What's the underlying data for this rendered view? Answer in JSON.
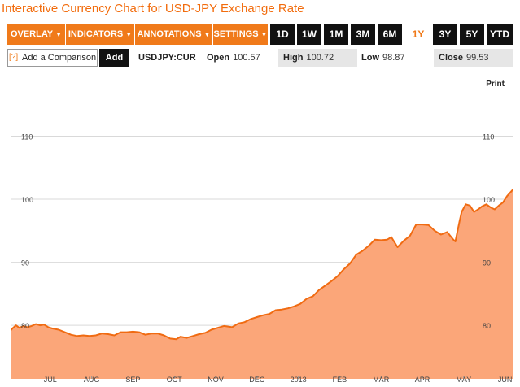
{
  "title": "Interactive Currency Chart for USD-JPY Exchange Rate",
  "toolbar": {
    "menus": [
      {
        "label": "OVERLAY"
      },
      {
        "label": "INDICATORS"
      },
      {
        "label": "ANNOTATIONS"
      },
      {
        "label": "SETTINGS"
      }
    ],
    "caret": "▼",
    "ranges": [
      "1D",
      "1W",
      "1M",
      "3M",
      "6M",
      "1Y",
      "3Y",
      "5Y",
      "YTD"
    ],
    "active_range": "1Y"
  },
  "comparison": {
    "help": "[?]",
    "placeholder": "Add a Comparison",
    "add_label": "Add"
  },
  "quote": {
    "symbol": "USDJPY:CUR",
    "open_label": "Open",
    "open": "100.57",
    "high_label": "High",
    "high": "100.72",
    "low_label": "Low",
    "low": "98.87",
    "close_label": "Close",
    "close": "99.53"
  },
  "print_label": "Print",
  "colors": {
    "accent": "#f07a1a",
    "title": "#f26c0d",
    "line": "#f06b12",
    "fill": "#fba679",
    "active_range_text": "#f07a1a"
  },
  "chart_data": {
    "type": "area",
    "title": "",
    "xlabel": "",
    "ylabel": "",
    "ylim": [
      71.5,
      120
    ],
    "y_ticks": [
      80,
      90,
      100,
      110
    ],
    "x_ticks": [
      "JUL",
      "AUG",
      "SEP",
      "OCT",
      "NOV",
      "DEC",
      "2013",
      "FEB",
      "MAR",
      "APR",
      "MAY",
      "JUN"
    ],
    "grid": true,
    "x_unit": "month index (0 = JUN 2012 start, 1 = JUL ...)",
    "points": [
      [
        0.0,
        78.9
      ],
      [
        0.1,
        79.6
      ],
      [
        0.17,
        80.0
      ],
      [
        0.25,
        79.6
      ],
      [
        0.35,
        79.9
      ],
      [
        0.45,
        79.7
      ],
      [
        0.55,
        79.9
      ],
      [
        0.65,
        80.2
      ],
      [
        0.75,
        80.0
      ],
      [
        0.85,
        80.1
      ],
      [
        0.95,
        79.7
      ],
      [
        1.05,
        79.5
      ],
      [
        1.2,
        79.3
      ],
      [
        1.35,
        78.9
      ],
      [
        1.5,
        78.5
      ],
      [
        1.65,
        78.3
      ],
      [
        1.8,
        78.4
      ],
      [
        1.95,
        78.3
      ],
      [
        2.1,
        78.4
      ],
      [
        2.25,
        78.7
      ],
      [
        2.4,
        78.6
      ],
      [
        2.55,
        78.4
      ],
      [
        2.7,
        78.9
      ],
      [
        2.85,
        78.9
      ],
      [
        3.0,
        79.0
      ],
      [
        3.15,
        78.9
      ],
      [
        3.3,
        78.5
      ],
      [
        3.45,
        78.7
      ],
      [
        3.6,
        78.7
      ],
      [
        3.75,
        78.4
      ],
      [
        3.9,
        77.9
      ],
      [
        4.05,
        77.8
      ],
      [
        4.15,
        78.2
      ],
      [
        4.3,
        78.0
      ],
      [
        4.45,
        78.3
      ],
      [
        4.6,
        78.6
      ],
      [
        4.75,
        78.8
      ],
      [
        4.9,
        79.3
      ],
      [
        5.05,
        79.6
      ],
      [
        5.2,
        79.9
      ],
      [
        5.4,
        79.7
      ],
      [
        5.55,
        80.3
      ],
      [
        5.7,
        80.5
      ],
      [
        5.85,
        81.0
      ],
      [
        6.0,
        81.3
      ],
      [
        6.15,
        81.6
      ],
      [
        6.3,
        81.8
      ],
      [
        6.45,
        82.4
      ],
      [
        6.6,
        82.5
      ],
      [
        6.75,
        82.7
      ],
      [
        6.9,
        83.0
      ],
      [
        7.05,
        83.4
      ],
      [
        7.2,
        84.2
      ],
      [
        7.35,
        84.6
      ],
      [
        7.5,
        85.6
      ],
      [
        7.65,
        86.3
      ],
      [
        7.8,
        87.0
      ],
      [
        7.95,
        87.8
      ],
      [
        8.1,
        88.9
      ],
      [
        8.25,
        89.8
      ],
      [
        8.4,
        91.2
      ],
      [
        8.55,
        91.8
      ],
      [
        8.7,
        92.6
      ],
      [
        8.85,
        93.6
      ],
      [
        9.0,
        93.5
      ],
      [
        9.15,
        93.6
      ],
      [
        9.25,
        94.0
      ],
      [
        9.4,
        92.4
      ],
      [
        9.55,
        93.4
      ],
      [
        9.7,
        94.2
      ],
      [
        9.85,
        96.0
      ],
      [
        10.0,
        96.0
      ],
      [
        10.15,
        95.9
      ],
      [
        10.3,
        95.0
      ],
      [
        10.45,
        94.4
      ],
      [
        10.6,
        94.8
      ],
      [
        10.75,
        93.6
      ],
      [
        10.8,
        93.3
      ],
      [
        10.9,
        96.5
      ],
      [
        10.95,
        98.0
      ],
      [
        11.05,
        99.2
      ],
      [
        11.15,
        99.0
      ],
      [
        11.25,
        98.0
      ],
      [
        11.35,
        98.4
      ],
      [
        11.45,
        98.9
      ],
      [
        11.55,
        99.2
      ],
      [
        11.65,
        98.7
      ],
      [
        11.75,
        98.4
      ],
      [
        11.85,
        99.0
      ],
      [
        11.95,
        99.5
      ],
      [
        12.05,
        100.5
      ],
      [
        12.2,
        101.6
      ],
      [
        12.35,
        102.6
      ],
      [
        12.5,
        102.6
      ],
      [
        12.65,
        102.8
      ],
      [
        12.8,
        102.0
      ],
      [
        12.95,
        101.4
      ],
      [
        13.05,
        101.6
      ],
      [
        13.2,
        100.8
      ],
      [
        13.3,
        99.5
      ]
    ]
  }
}
